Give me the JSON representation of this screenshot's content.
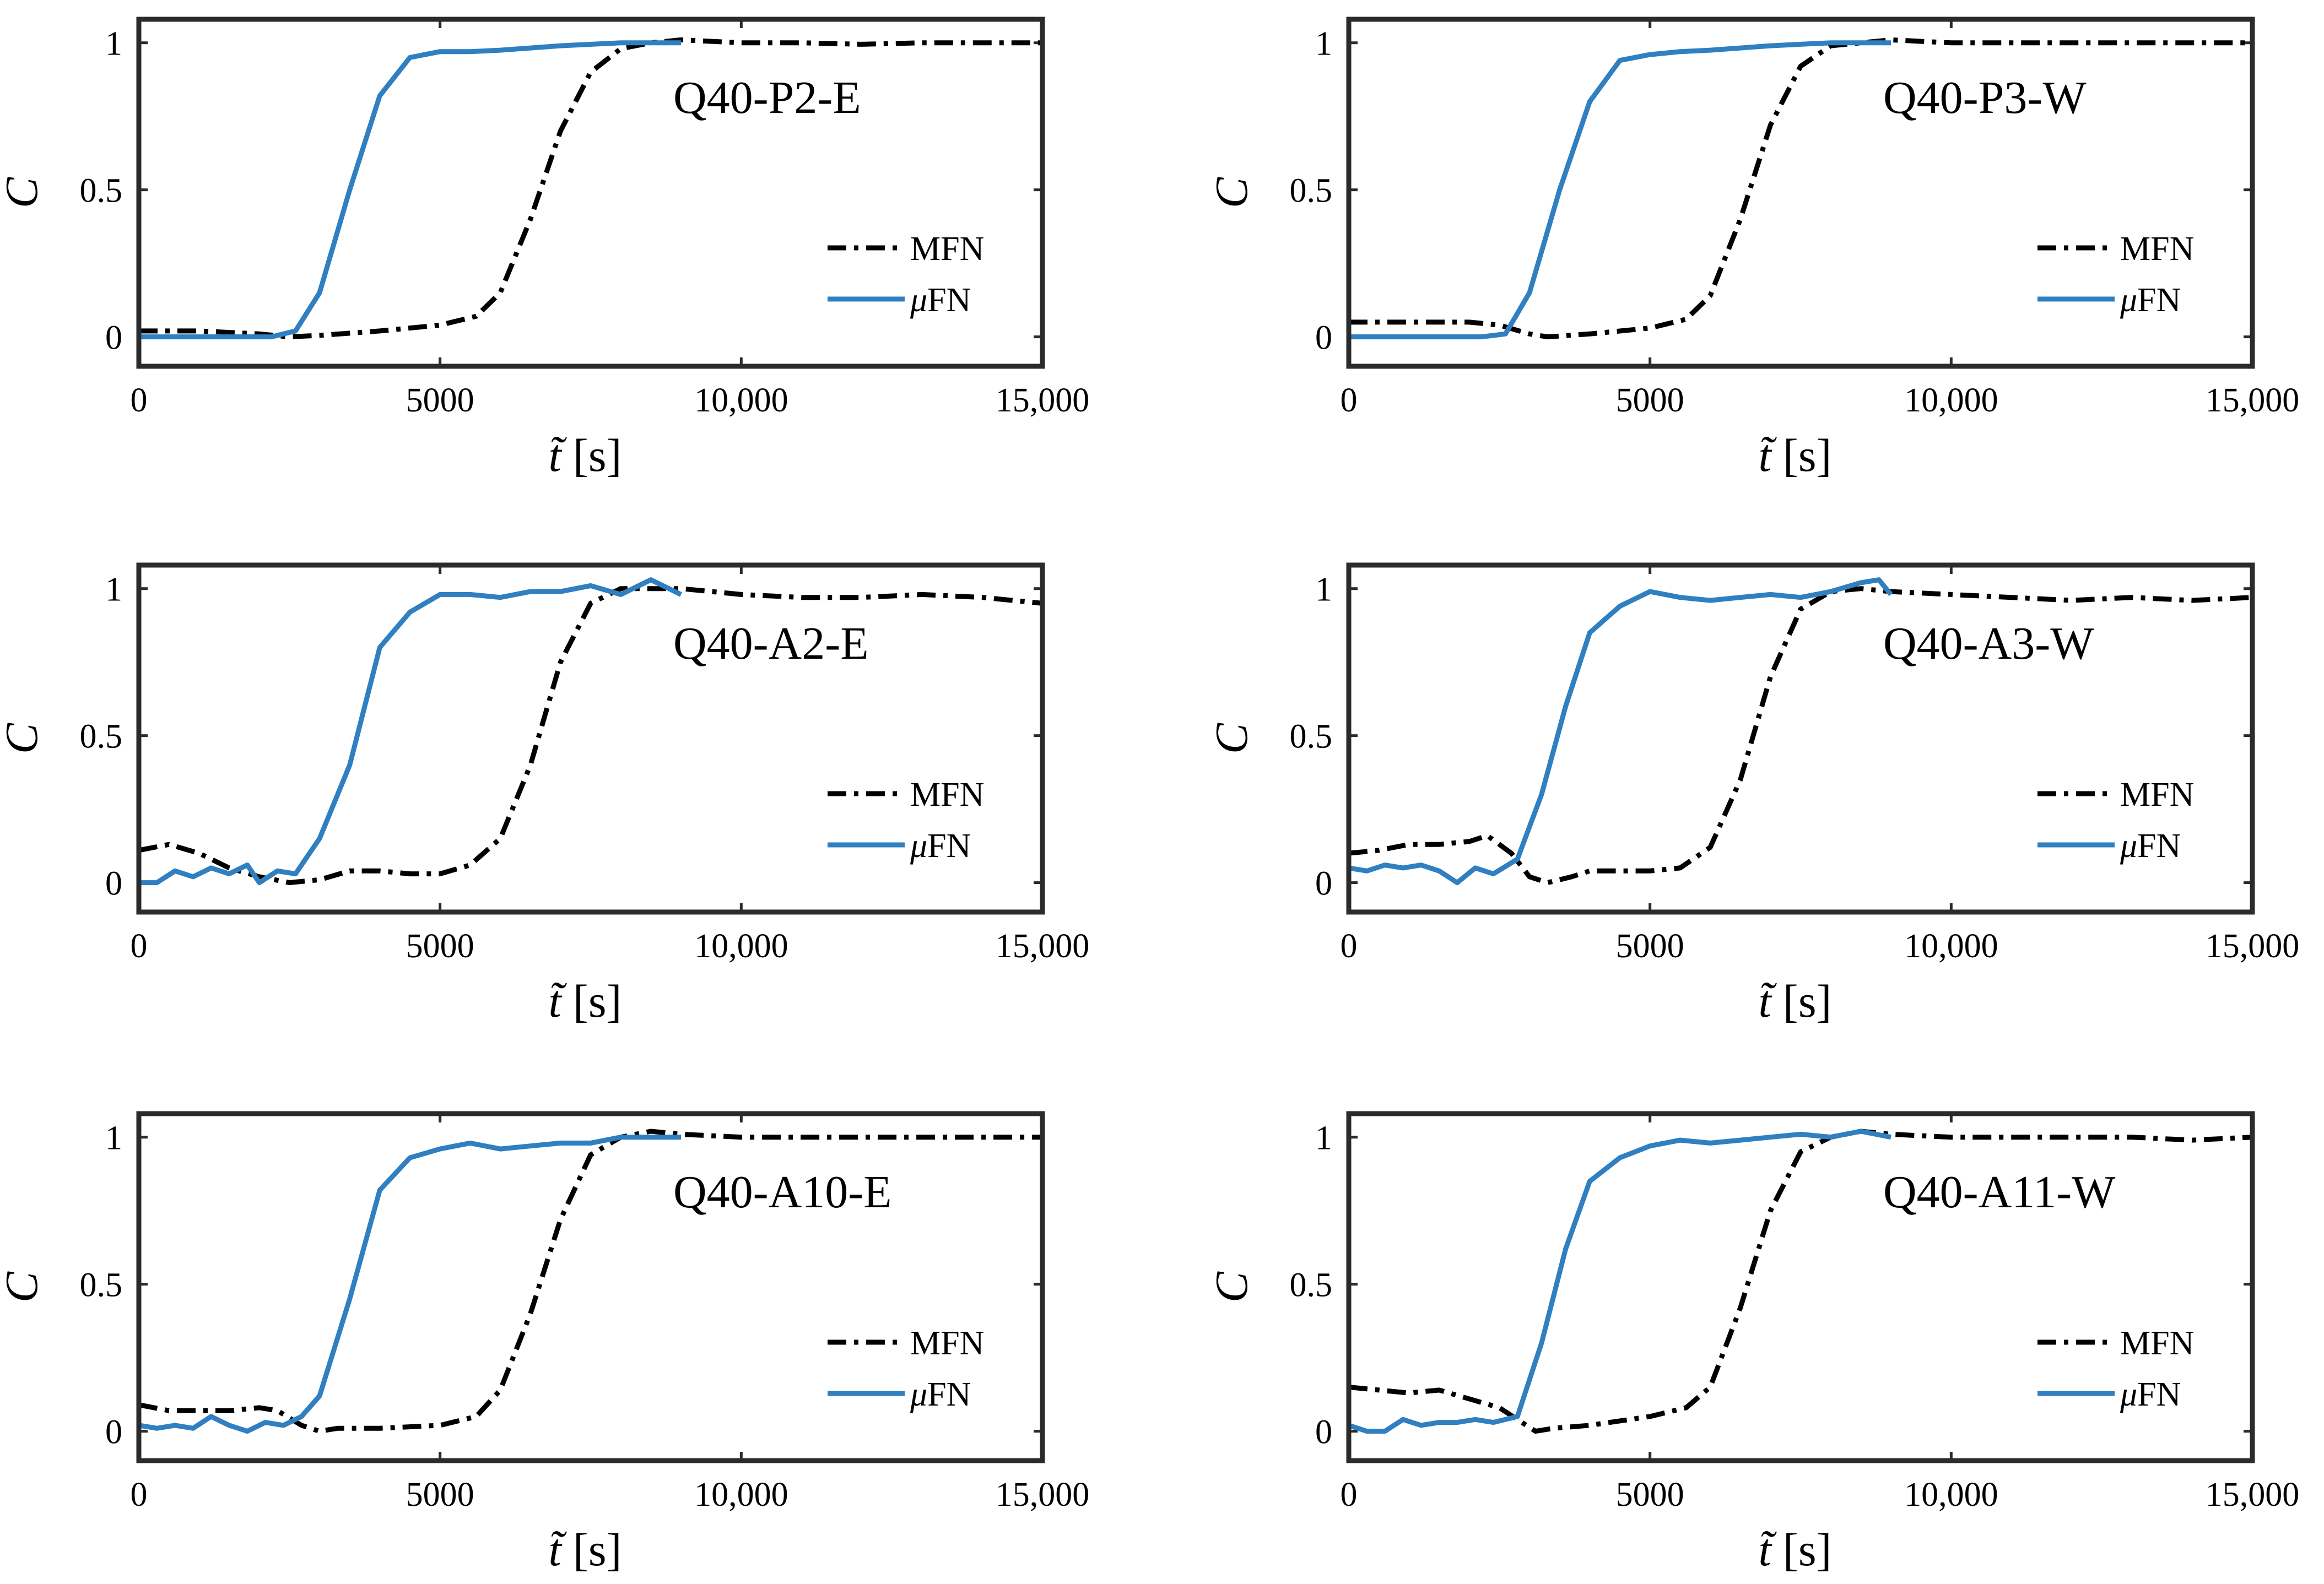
{
  "colors": {
    "mfn": "#000000",
    "ufn": "#2F7FC1",
    "axis": "#2b2b2b"
  },
  "chart_data": [
    {
      "type": "line",
      "title": "Q40-P2-E",
      "xlabel_symbol": "t̃",
      "xlabel_unit": "[s]",
      "ylabel": "C",
      "xlim": [
        0,
        15000
      ],
      "ylim": [
        -0.1,
        1.08
      ],
      "xticks": [
        0,
        5000,
        10000,
        15000
      ],
      "xtick_labels": [
        "0",
        "5000",
        "10,000",
        "15,000"
      ],
      "yticks": [
        0,
        0.5,
        1
      ],
      "ytick_labels": [
        "0",
        "0.5",
        "1"
      ],
      "legend": "right",
      "series": [
        {
          "name": "MFN",
          "style": "dash-dot",
          "x": [
            0,
            1000,
            2000,
            2500,
            3000,
            4000,
            5000,
            5600,
            6000,
            6500,
            7000,
            7500,
            8000,
            8500,
            9000,
            10000,
            11000,
            12000,
            13000,
            14000,
            15000
          ],
          "y": [
            0.02,
            0.02,
            0.01,
            0.0,
            0.005,
            0.02,
            0.04,
            0.07,
            0.15,
            0.4,
            0.7,
            0.9,
            0.98,
            1.0,
            1.01,
            1.0,
            1.0,
            0.995,
            1.0,
            1.0,
            1.0
          ]
        },
        {
          "name": "μFN",
          "style": "solid",
          "x": [
            0,
            1000,
            2200,
            2600,
            3000,
            3500,
            4000,
            4500,
            5000,
            5500,
            6000,
            7000,
            8000,
            9000
          ],
          "y": [
            0.0,
            0.0,
            0.0,
            0.02,
            0.15,
            0.5,
            0.82,
            0.95,
            0.97,
            0.97,
            0.975,
            0.99,
            1.0,
            1.0
          ]
        }
      ]
    },
    {
      "type": "line",
      "title": "Q40-P3-W",
      "xlabel_symbol": "t̃",
      "xlabel_unit": "[s]",
      "ylabel": "C",
      "xlim": [
        0,
        15000
      ],
      "ylim": [
        -0.1,
        1.08
      ],
      "xticks": [
        0,
        5000,
        10000,
        15000
      ],
      "xtick_labels": [
        "0",
        "5000",
        "10,000",
        "15,000"
      ],
      "yticks": [
        0,
        0.5,
        1
      ],
      "ytick_labels": [
        "0",
        "0.5",
        "1"
      ],
      "legend": "right",
      "series": [
        {
          "name": "MFN",
          "style": "dash-dot",
          "x": [
            0,
            1000,
            2000,
            2500,
            3000,
            3300,
            4000,
            5000,
            5600,
            6000,
            6500,
            7000,
            7500,
            8000,
            8500,
            9000,
            10000,
            11000,
            12000,
            13000,
            14000,
            15000
          ],
          "y": [
            0.05,
            0.05,
            0.05,
            0.04,
            0.01,
            0.0,
            0.01,
            0.03,
            0.06,
            0.14,
            0.4,
            0.72,
            0.92,
            0.99,
            1.0,
            1.01,
            1.0,
            1.0,
            1.0,
            1.0,
            1.0,
            1.0
          ]
        },
        {
          "name": "μFN",
          "style": "solid",
          "x": [
            0,
            1000,
            2200,
            2600,
            3000,
            3500,
            4000,
            4500,
            5000,
            5500,
            6000,
            7000,
            8000,
            9000
          ],
          "y": [
            0.0,
            0.0,
            0.0,
            0.01,
            0.15,
            0.5,
            0.8,
            0.94,
            0.96,
            0.97,
            0.975,
            0.99,
            1.0,
            1.0
          ]
        }
      ]
    },
    {
      "type": "line",
      "title": "Q40-A2-E",
      "xlabel_symbol": "t̃",
      "xlabel_unit": "[s]",
      "ylabel": "C",
      "xlim": [
        0,
        15000
      ],
      "ylim": [
        -0.1,
        1.08
      ],
      "xticks": [
        0,
        5000,
        10000,
        15000
      ],
      "xtick_labels": [
        "0",
        "5000",
        "10,000",
        "15,000"
      ],
      "yticks": [
        0,
        0.5,
        1
      ],
      "ytick_labels": [
        "0",
        "0.5",
        "1"
      ],
      "legend": "right",
      "series": [
        {
          "name": "MFN",
          "style": "dash-dot",
          "x": [
            0,
            500,
            1000,
            1500,
            2000,
            2500,
            3000,
            3500,
            4000,
            4500,
            5000,
            5500,
            6000,
            6500,
            7000,
            7500,
            8000,
            8500,
            9000,
            10000,
            11000,
            12000,
            13000,
            14000,
            15000
          ],
          "y": [
            0.11,
            0.13,
            0.1,
            0.05,
            0.02,
            0.0,
            0.01,
            0.04,
            0.04,
            0.03,
            0.03,
            0.06,
            0.15,
            0.4,
            0.75,
            0.95,
            1.0,
            1.0,
            1.0,
            0.98,
            0.97,
            0.97,
            0.98,
            0.97,
            0.95
          ]
        },
        {
          "name": "μFN",
          "style": "solid",
          "x": [
            0,
            300,
            600,
            900,
            1200,
            1500,
            1800,
            2000,
            2300,
            2600,
            3000,
            3500,
            4000,
            4500,
            5000,
            5500,
            6000,
            6500,
            7000,
            7500,
            8000,
            8500,
            9000
          ],
          "y": [
            0.0,
            0.0,
            0.04,
            0.02,
            0.05,
            0.03,
            0.06,
            0.0,
            0.04,
            0.03,
            0.15,
            0.4,
            0.8,
            0.92,
            0.98,
            0.98,
            0.97,
            0.99,
            0.99,
            1.01,
            0.98,
            1.03,
            0.98
          ]
        }
      ]
    },
    {
      "type": "line",
      "title": "Q40-A3-W",
      "xlabel_symbol": "t̃",
      "xlabel_unit": "[s]",
      "ylabel": "C",
      "xlim": [
        0,
        15000
      ],
      "ylim": [
        -0.1,
        1.08
      ],
      "xticks": [
        0,
        5000,
        10000,
        15000
      ],
      "xtick_labels": [
        "0",
        "5000",
        "10,000",
        "15,000"
      ],
      "yticks": [
        0,
        0.5,
        1
      ],
      "ytick_labels": [
        "0",
        "0.5",
        "1"
      ],
      "legend": "right",
      "series": [
        {
          "name": "MFN",
          "style": "dash-dot",
          "x": [
            0,
            500,
            1000,
            1500,
            2000,
            2300,
            2700,
            3000,
            3300,
            3700,
            4000,
            4500,
            5000,
            5500,
            6000,
            6500,
            7000,
            7500,
            8000,
            8500,
            9000,
            10000,
            11000,
            12000,
            13000,
            14000,
            15000
          ],
          "y": [
            0.1,
            0.11,
            0.13,
            0.13,
            0.14,
            0.16,
            0.1,
            0.02,
            0.0,
            0.02,
            0.04,
            0.04,
            0.04,
            0.05,
            0.12,
            0.35,
            0.7,
            0.93,
            0.99,
            1.0,
            0.99,
            0.98,
            0.97,
            0.96,
            0.97,
            0.96,
            0.97
          ]
        },
        {
          "name": "μFN",
          "style": "solid",
          "x": [
            0,
            300,
            600,
            900,
            1200,
            1500,
            1800,
            2100,
            2400,
            2800,
            3200,
            3600,
            4000,
            4500,
            5000,
            5500,
            6000,
            6500,
            7000,
            7500,
            8000,
            8500,
            8800,
            9000
          ],
          "y": [
            0.05,
            0.04,
            0.06,
            0.05,
            0.06,
            0.04,
            0.0,
            0.05,
            0.03,
            0.08,
            0.3,
            0.6,
            0.85,
            0.94,
            0.99,
            0.97,
            0.96,
            0.97,
            0.98,
            0.97,
            0.99,
            1.02,
            1.03,
            0.98
          ]
        }
      ]
    },
    {
      "type": "line",
      "title": "Q40-A10-E",
      "xlabel_symbol": "t̃",
      "xlabel_unit": "[s]",
      "ylabel": "C",
      "xlim": [
        0,
        15000
      ],
      "ylim": [
        -0.1,
        1.08
      ],
      "xticks": [
        0,
        5000,
        10000,
        15000
      ],
      "xtick_labels": [
        "0",
        "5000",
        "10,000",
        "15,000"
      ],
      "yticks": [
        0,
        0.5,
        1
      ],
      "ytick_labels": [
        "0",
        "0.5",
        "1"
      ],
      "legend": "right",
      "series": [
        {
          "name": "MFN",
          "style": "dash-dot",
          "x": [
            0,
            500,
            1000,
            1500,
            2000,
            2300,
            2700,
            3000,
            3300,
            4000,
            5000,
            5600,
            6000,
            6500,
            7000,
            7500,
            8000,
            8500,
            9000,
            10000,
            11000,
            12000,
            13000,
            14000,
            15000
          ],
          "y": [
            0.09,
            0.07,
            0.07,
            0.07,
            0.08,
            0.07,
            0.02,
            0.0,
            0.01,
            0.01,
            0.02,
            0.05,
            0.14,
            0.4,
            0.72,
            0.94,
            1.0,
            1.02,
            1.01,
            1.0,
            1.0,
            1.0,
            1.0,
            1.0,
            1.0
          ]
        },
        {
          "name": "μFN",
          "style": "solid",
          "x": [
            0,
            300,
            600,
            900,
            1200,
            1500,
            1800,
            2100,
            2400,
            2700,
            3000,
            3500,
            4000,
            4500,
            5000,
            5500,
            6000,
            6500,
            7000,
            7500,
            8000,
            8500,
            9000
          ],
          "y": [
            0.02,
            0.01,
            0.02,
            0.01,
            0.05,
            0.02,
            0.0,
            0.03,
            0.02,
            0.05,
            0.12,
            0.45,
            0.82,
            0.93,
            0.96,
            0.98,
            0.96,
            0.97,
            0.98,
            0.98,
            1.0,
            1.0,
            1.0
          ]
        }
      ]
    },
    {
      "type": "line",
      "title": "Q40-A11-W",
      "xlabel_symbol": "t̃",
      "xlabel_unit": "[s]",
      "ylabel": "C",
      "xlim": [
        0,
        15000
      ],
      "ylim": [
        -0.1,
        1.08
      ],
      "xticks": [
        0,
        5000,
        10000,
        15000
      ],
      "xtick_labels": [
        "0",
        "5000",
        "10,000",
        "15,000"
      ],
      "yticks": [
        0,
        0.5,
        1
      ],
      "ytick_labels": [
        "0",
        "0.5",
        "1"
      ],
      "legend": "right",
      "series": [
        {
          "name": "MFN",
          "style": "dash-dot",
          "x": [
            0,
            500,
            1000,
            1500,
            2000,
            2500,
            2800,
            3100,
            3400,
            4000,
            5000,
            5600,
            6000,
            6500,
            7000,
            7500,
            8000,
            8500,
            9000,
            10000,
            11000,
            12000,
            13000,
            14000,
            15000
          ],
          "y": [
            0.15,
            0.14,
            0.13,
            0.14,
            0.11,
            0.08,
            0.04,
            0.0,
            0.01,
            0.02,
            0.05,
            0.08,
            0.15,
            0.42,
            0.75,
            0.95,
            1.0,
            1.02,
            1.01,
            1.0,
            1.0,
            1.0,
            1.0,
            0.99,
            1.0
          ]
        },
        {
          "name": "μFN",
          "style": "solid",
          "x": [
            0,
            300,
            600,
            900,
            1200,
            1500,
            1800,
            2100,
            2400,
            2800,
            3200,
            3600,
            4000,
            4500,
            5000,
            5500,
            6000,
            6500,
            7000,
            7500,
            8000,
            8500,
            9000
          ],
          "y": [
            0.02,
            0.0,
            0.0,
            0.04,
            0.02,
            0.03,
            0.03,
            0.04,
            0.03,
            0.05,
            0.3,
            0.62,
            0.85,
            0.93,
            0.97,
            0.99,
            0.98,
            0.99,
            1.0,
            1.01,
            1.0,
            1.02,
            1.0
          ]
        }
      ]
    }
  ]
}
